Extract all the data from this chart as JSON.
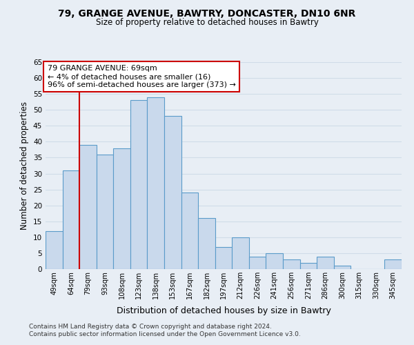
{
  "title_line1": "79, GRANGE AVENUE, BAWTRY, DONCASTER, DN10 6NR",
  "title_line2": "Size of property relative to detached houses in Bawtry",
  "xlabel": "Distribution of detached houses by size in Bawtry",
  "ylabel": "Number of detached properties",
  "categories": [
    "49sqm",
    "64sqm",
    "79sqm",
    "93sqm",
    "108sqm",
    "123sqm",
    "138sqm",
    "153sqm",
    "167sqm",
    "182sqm",
    "197sqm",
    "212sqm",
    "226sqm",
    "241sqm",
    "256sqm",
    "271sqm",
    "286sqm",
    "300sqm",
    "315sqm",
    "330sqm",
    "345sqm"
  ],
  "values": [
    12,
    31,
    39,
    36,
    38,
    53,
    54,
    48,
    24,
    16,
    7,
    10,
    4,
    5,
    3,
    2,
    4,
    1,
    0,
    0,
    3
  ],
  "bar_color": "#c9d9ec",
  "bar_edge_color": "#5a9bc9",
  "vline_x": 1.5,
  "annotation_text_line1": "79 GRANGE AVENUE: 69sqm",
  "annotation_text_line2": "← 4% of detached houses are smaller (16)",
  "annotation_text_line3": "96% of semi-detached houses are larger (373) →",
  "annotation_box_color": "#ffffff",
  "annotation_box_edge": "#cc0000",
  "vertical_line_color": "#cc0000",
  "ylim": [
    0,
    65
  ],
  "yticks": [
    0,
    5,
    10,
    15,
    20,
    25,
    30,
    35,
    40,
    45,
    50,
    55,
    60,
    65
  ],
  "grid_color": "#d0dce8",
  "background_color": "#e8eef5",
  "footnote1": "Contains HM Land Registry data © Crown copyright and database right 2024.",
  "footnote2": "Contains public sector information licensed under the Open Government Licence v3.0."
}
